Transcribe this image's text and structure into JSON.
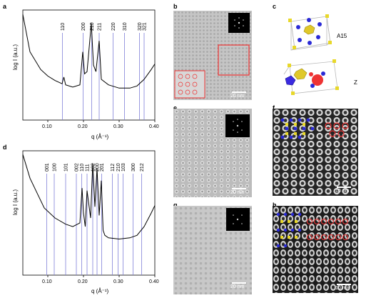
{
  "panels": {
    "a": "a",
    "b": "b",
    "c": "c",
    "d": "d",
    "e": "e",
    "f": "f",
    "g": "g",
    "h": "h"
  },
  "chart_data": [
    {
      "type": "line",
      "panel": "a",
      "xlabel": "q (Å⁻¹)",
      "ylabel": "log I (a.u.)",
      "xlim": [
        0.03,
        0.4
      ],
      "xticks": [
        0.1,
        0.2,
        0.3,
        0.4
      ],
      "xtick_labels": [
        "0.10",
        "0.20",
        "0.30",
        "0.40"
      ],
      "index_labels": [
        "110",
        "200",
        "210",
        "211",
        "220",
        "310",
        "320",
        "321"
      ],
      "index_positions": [
        0.141,
        0.199,
        0.223,
        0.244,
        0.283,
        0.315,
        0.357,
        0.37
      ],
      "x": [
        0.03,
        0.05,
        0.08,
        0.1,
        0.12,
        0.14,
        0.145,
        0.15,
        0.17,
        0.19,
        0.198,
        0.203,
        0.21,
        0.222,
        0.228,
        0.235,
        0.244,
        0.25,
        0.27,
        0.3,
        0.33,
        0.35,
        0.37,
        0.39,
        0.4
      ],
      "y": [
        9.6,
        6.2,
        4.6,
        4.0,
        3.6,
        3.3,
        3.9,
        3.2,
        3.0,
        3.2,
        6.2,
        4.2,
        4.4,
        8.8,
        5.0,
        4.4,
        7.2,
        3.7,
        3.2,
        2.9,
        2.9,
        3.1,
        3.7,
        4.6,
        5.1
      ]
    },
    {
      "type": "line",
      "panel": "d",
      "xlabel": "q (Å⁻¹)",
      "ylabel": "log I (a.u.)",
      "xlim": [
        0.03,
        0.4
      ],
      "xticks": [
        0.1,
        0.2,
        0.3,
        0.4
      ],
      "xtick_labels": [
        "0.10",
        "0.20",
        "0.30",
        "0.40"
      ],
      "index_labels": [
        "001",
        "100",
        "101",
        "002",
        "110",
        "111",
        "102",
        "200",
        "201",
        "112",
        "210",
        "103",
        "300",
        "212"
      ],
      "index_positions": [
        0.097,
        0.118,
        0.15,
        0.18,
        0.195,
        0.21,
        0.226,
        0.238,
        0.251,
        0.281,
        0.297,
        0.311,
        0.339,
        0.363
      ],
      "x": [
        0.03,
        0.05,
        0.07,
        0.09,
        0.12,
        0.15,
        0.17,
        0.19,
        0.196,
        0.2,
        0.205,
        0.21,
        0.22,
        0.226,
        0.232,
        0.238,
        0.244,
        0.25,
        0.255,
        0.26,
        0.27,
        0.3,
        0.33,
        0.35,
        0.37,
        0.39,
        0.4
      ],
      "y": [
        9.7,
        7.8,
        6.6,
        5.4,
        4.6,
        4.1,
        3.9,
        4.2,
        7.0,
        5.0,
        3.9,
        6.8,
        4.6,
        9.0,
        5.5,
        8.6,
        4.8,
        7.6,
        3.6,
        3.2,
        3.0,
        2.9,
        3.0,
        3.2,
        3.9,
        5.0,
        5.6
      ]
    }
  ],
  "micrographs": {
    "b": {
      "scale_label": "20 nm"
    },
    "e": {
      "scale_label": "20 nm"
    },
    "f": {
      "scale_label": "10 nm"
    },
    "g": {
      "scale_label": "20 nm"
    },
    "h": {
      "scale_label": "10 nm"
    }
  },
  "models": {
    "top_label": "A15",
    "bottom_label": "Z"
  }
}
